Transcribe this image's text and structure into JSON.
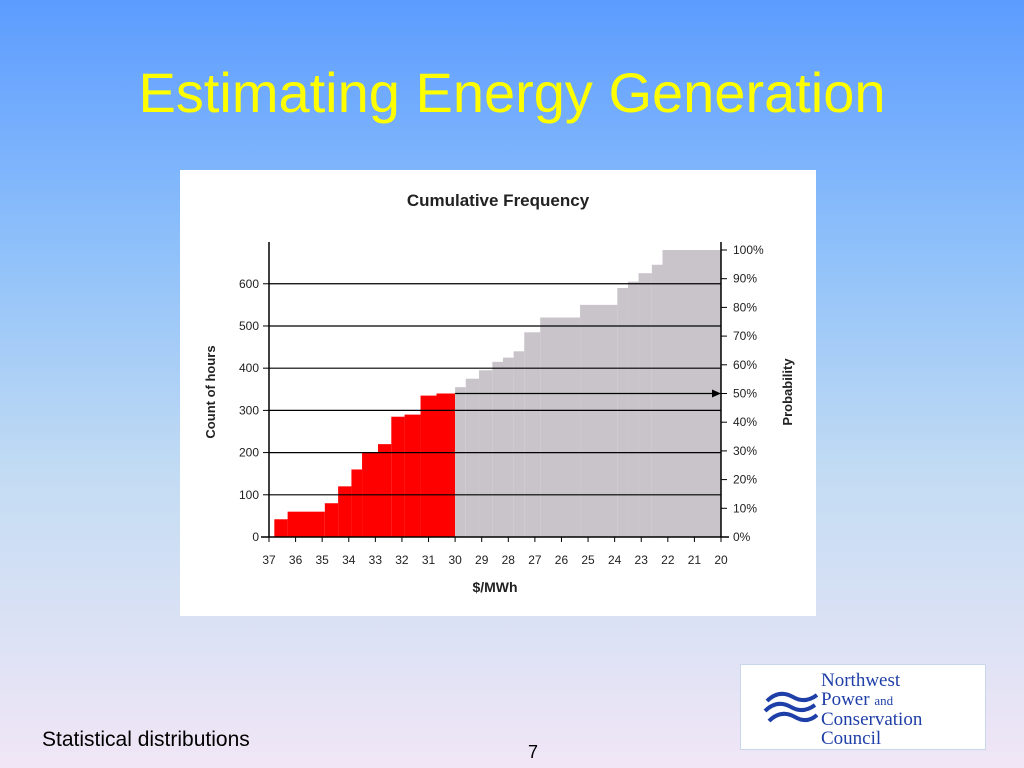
{
  "slide": {
    "title": "Estimating Energy Generation",
    "footer_left": "Statistical distributions",
    "page_number": "7"
  },
  "logo": {
    "line1": "Northwest",
    "line2": "Power",
    "line2_small": "and",
    "line3": "Conservation",
    "line4": "Council",
    "color": "#1f3fa8"
  },
  "chart_data": {
    "type": "bar",
    "title": "Cumulative Frequency",
    "xlabel": "$/MWh",
    "ylabel": "Count of hours",
    "y2label": "Probability",
    "ylim": [
      0,
      680
    ],
    "y_ticks": [
      0,
      100,
      200,
      300,
      400,
      500,
      600
    ],
    "y2_ticks": [
      "0%",
      "10%",
      "20%",
      "30%",
      "40%",
      "50%",
      "60%",
      "70%",
      "80%",
      "90%",
      "100%"
    ],
    "x_tick_labels": [
      "37",
      "36",
      "35",
      "34",
      "33",
      "32",
      "31",
      "30",
      "29",
      "28",
      "27",
      "26",
      "25",
      "24",
      "23",
      "22",
      "21",
      "20"
    ],
    "x_start": 37,
    "x_end": 20,
    "threshold": 30,
    "highlight_color": "#ff0000",
    "rest_color": "#c8c4ca",
    "reference_lines": [
      100,
      200,
      300,
      400,
      500,
      600
    ],
    "arrow_level": 340,
    "steps": [
      {
        "x": 36.8,
        "y": 42
      },
      {
        "x": 36.3,
        "y": 60
      },
      {
        "x": 34.9,
        "y": 80
      },
      {
        "x": 34.4,
        "y": 120
      },
      {
        "x": 33.9,
        "y": 160
      },
      {
        "x": 33.5,
        "y": 200
      },
      {
        "x": 32.9,
        "y": 220
      },
      {
        "x": 32.4,
        "y": 285
      },
      {
        "x": 31.9,
        "y": 290
      },
      {
        "x": 31.3,
        "y": 335
      },
      {
        "x": 30.7,
        "y": 340
      },
      {
        "x": 30.0,
        "y": 355
      },
      {
        "x": 29.6,
        "y": 375
      },
      {
        "x": 29.1,
        "y": 395
      },
      {
        "x": 28.6,
        "y": 415
      },
      {
        "x": 28.2,
        "y": 425
      },
      {
        "x": 27.8,
        "y": 440
      },
      {
        "x": 27.4,
        "y": 485
      },
      {
        "x": 26.8,
        "y": 520
      },
      {
        "x": 25.3,
        "y": 550
      },
      {
        "x": 23.9,
        "y": 590
      },
      {
        "x": 23.5,
        "y": 605
      },
      {
        "x": 23.1,
        "y": 625
      },
      {
        "x": 22.6,
        "y": 645
      },
      {
        "x": 22.2,
        "y": 680
      }
    ]
  }
}
